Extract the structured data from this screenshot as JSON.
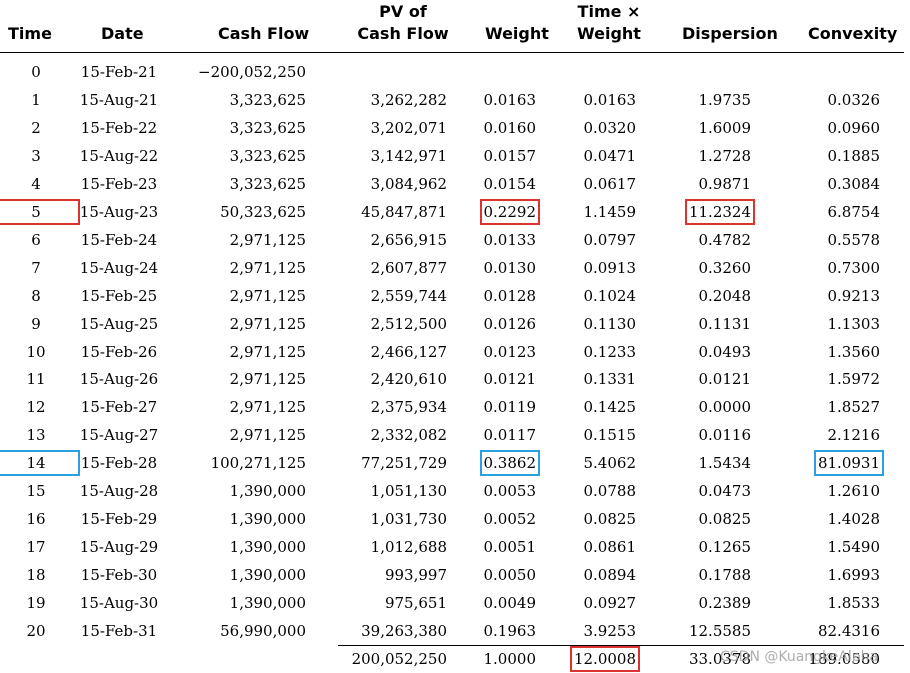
{
  "headers": {
    "time": "Time",
    "date": "Date",
    "cash_flow": "Cash Flow",
    "pv_line1": "PV of",
    "pv_line2": "Cash Flow",
    "weight": "Weight",
    "tw_line1": "Time ×",
    "tw_line2": "Weight",
    "dispersion": "Dispersion",
    "convexity": "Convexity"
  },
  "rows": [
    {
      "time": "0",
      "date": "15-Feb-21",
      "cf": "−200,052,250",
      "pv": "",
      "w": "",
      "tw": "",
      "disp": "",
      "conv": ""
    },
    {
      "time": "1",
      "date": "15-Aug-21",
      "cf": "3,323,625",
      "pv": "3,262,282",
      "w": "0.0163",
      "tw": "0.0163",
      "disp": "1.9735",
      "conv": "0.0326"
    },
    {
      "time": "2",
      "date": "15-Feb-22",
      "cf": "3,323,625",
      "pv": "3,202,071",
      "w": "0.0160",
      "tw": "0.0320",
      "disp": "1.6009",
      "conv": "0.0960"
    },
    {
      "time": "3",
      "date": "15-Aug-22",
      "cf": "3,323,625",
      "pv": "3,142,971",
      "w": "0.0157",
      "tw": "0.0471",
      "disp": "1.2728",
      "conv": "0.1885"
    },
    {
      "time": "4",
      "date": "15-Feb-23",
      "cf": "3,323,625",
      "pv": "3,084,962",
      "w": "0.0154",
      "tw": "0.0617",
      "disp": "0.9871",
      "conv": "0.3084"
    },
    {
      "time": "5",
      "date": "15-Aug-23",
      "cf": "50,323,625",
      "pv": "45,847,871",
      "w": "0.2292",
      "tw": "1.1459",
      "disp": "11.2324",
      "conv": "6.8754"
    },
    {
      "time": "6",
      "date": "15-Feb-24",
      "cf": "2,971,125",
      "pv": "2,656,915",
      "w": "0.0133",
      "tw": "0.0797",
      "disp": "0.4782",
      "conv": "0.5578"
    },
    {
      "time": "7",
      "date": "15-Aug-24",
      "cf": "2,971,125",
      "pv": "2,607,877",
      "w": "0.0130",
      "tw": "0.0913",
      "disp": "0.3260",
      "conv": "0.7300"
    },
    {
      "time": "8",
      "date": "15-Feb-25",
      "cf": "2,971,125",
      "pv": "2,559,744",
      "w": "0.0128",
      "tw": "0.1024",
      "disp": "0.2048",
      "conv": "0.9213"
    },
    {
      "time": "9",
      "date": "15-Aug-25",
      "cf": "2,971,125",
      "pv": "2,512,500",
      "w": "0.0126",
      "tw": "0.1130",
      "disp": "0.1131",
      "conv": "1.1303"
    },
    {
      "time": "10",
      "date": "15-Feb-26",
      "cf": "2,971,125",
      "pv": "2,466,127",
      "w": "0.0123",
      "tw": "0.1233",
      "disp": "0.0493",
      "conv": "1.3560"
    },
    {
      "time": "11",
      "date": "15-Aug-26",
      "cf": "2,971,125",
      "pv": "2,420,610",
      "w": "0.0121",
      "tw": "0.1331",
      "disp": "0.0121",
      "conv": "1.5972"
    },
    {
      "time": "12",
      "date": "15-Feb-27",
      "cf": "2,971,125",
      "pv": "2,375,934",
      "w": "0.0119",
      "tw": "0.1425",
      "disp": "0.0000",
      "conv": "1.8527"
    },
    {
      "time": "13",
      "date": "15-Aug-27",
      "cf": "2,971,125",
      "pv": "2,332,082",
      "w": "0.0117",
      "tw": "0.1515",
      "disp": "0.0116",
      "conv": "2.1216"
    },
    {
      "time": "14",
      "date": "15-Feb-28",
      "cf": "100,271,125",
      "pv": "77,251,729",
      "w": "0.3862",
      "tw": "5.4062",
      "disp": "1.5434",
      "conv": "81.0931"
    },
    {
      "time": "15",
      "date": "15-Aug-28",
      "cf": "1,390,000",
      "pv": "1,051,130",
      "w": "0.0053",
      "tw": "0.0788",
      "disp": "0.0473",
      "conv": "1.2610"
    },
    {
      "time": "16",
      "date": "15-Feb-29",
      "cf": "1,390,000",
      "pv": "1,031,730",
      "w": "0.0052",
      "tw": "0.0825",
      "disp": "0.0825",
      "conv": "1.4028"
    },
    {
      "time": "17",
      "date": "15-Aug-29",
      "cf": "1,390,000",
      "pv": "1,012,688",
      "w": "0.0051",
      "tw": "0.0861",
      "disp": "0.1265",
      "conv": "1.5490"
    },
    {
      "time": "18",
      "date": "15-Feb-30",
      "cf": "1,390,000",
      "pv": "993,997",
      "w": "0.0050",
      "tw": "0.0894",
      "disp": "0.1788",
      "conv": "1.6993"
    },
    {
      "time": "19",
      "date": "15-Aug-30",
      "cf": "1,390,000",
      "pv": "975,651",
      "w": "0.0049",
      "tw": "0.0927",
      "disp": "0.2389",
      "conv": "1.8533"
    },
    {
      "time": "20",
      "date": "15-Feb-31",
      "cf": "56,990,000",
      "pv": "39,263,380",
      "w": "0.1963",
      "tw": "3.9253",
      "disp": "12.5585",
      "conv": "82.4316"
    }
  ],
  "totals": {
    "pv": "200,052,250",
    "w": "1.0000",
    "tw": "12.0008",
    "disp": "33.0378",
    "conv": "189.0580"
  },
  "highlights": {
    "red_color": "#e03131",
    "blue_color": "#2aa0e0",
    "red": [
      "time-5",
      "w-5",
      "disp-5",
      "tw-total"
    ],
    "blue": [
      "time-14",
      "w-14",
      "conv-14"
    ]
  },
  "watermark": "CSDN @KuangkeAlpha"
}
